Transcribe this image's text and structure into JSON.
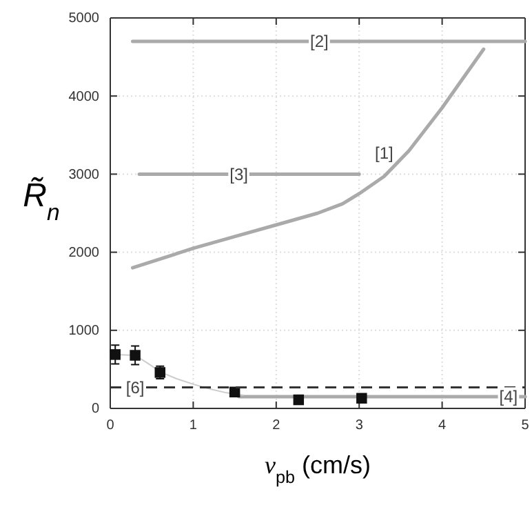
{
  "chart_data": {
    "type": "line",
    "xlabel": "v$_{pb}$ (cm/s)",
    "ylabel": "R̃$_{n}$",
    "xlim": [
      0,
      5
    ],
    "xticks": [
      0,
      1,
      2,
      3,
      4,
      5
    ],
    "ylim": [
      0,
      5000
    ],
    "yticks": [
      0,
      1000,
      2000,
      3000,
      4000,
      5000
    ],
    "grid": true,
    "series": [
      {
        "color": "#aaaaaa",
        "x": [
          0.27,
          1,
          1.5,
          2,
          2.5,
          2.8,
          3,
          3.3,
          3.6,
          4,
          4.3,
          4.5
        ],
        "values": [
          1800,
          2050,
          2200,
          2350,
          2500,
          2620,
          2750,
          2970,
          3300,
          3850,
          4300,
          4600
        ]
      },
      {
        "color": "#aaaaaa",
        "x": [
          0.27,
          5
        ],
        "values": [
          4700,
          4700
        ]
      },
      {
        "color": "#aaaaaa",
        "x": [
          0.35,
          3
        ],
        "values": [
          3000,
          3000
        ]
      },
      {
        "color": "#aaaaaa",
        "x": [
          1.55,
          5
        ],
        "values": [
          150,
          150
        ]
      },
      {
        "color": "#cccccc",
        "x": [
          0.06,
          0.3,
          0.45,
          0.6,
          0.8,
          1,
          1.2,
          1.4,
          1.6
        ],
        "values": [
          690,
          680,
          580,
          470,
          380,
          310,
          250,
          200,
          170
        ]
      },
      {
        "type": "scatter",
        "color": "#111111",
        "marker": "square",
        "x": [
          0.06,
          0.3,
          0.6,
          1.5,
          2.27,
          3.03
        ],
        "values": [
          690,
          680,
          460,
          210,
          110,
          130
        ],
        "errors": [
          120,
          120,
          80,
          null,
          null,
          null
        ]
      }
    ],
    "ref_lines": [
      {
        "axis": "y",
        "value": 270,
        "color": "#333333",
        "line_style": "dashed"
      }
    ],
    "annotations": [
      {
        "text": "[1]",
        "x": 3.3,
        "y": 3270
      },
      {
        "text": "[2]",
        "x": 2.52,
        "y": 4700
      },
      {
        "text": "[3]",
        "x": 1.55,
        "y": 3000
      },
      {
        "text": "[4]",
        "x": 4.8,
        "y": 150
      },
      {
        "text": "[6]",
        "x": 0.3,
        "y": 270
      }
    ]
  }
}
